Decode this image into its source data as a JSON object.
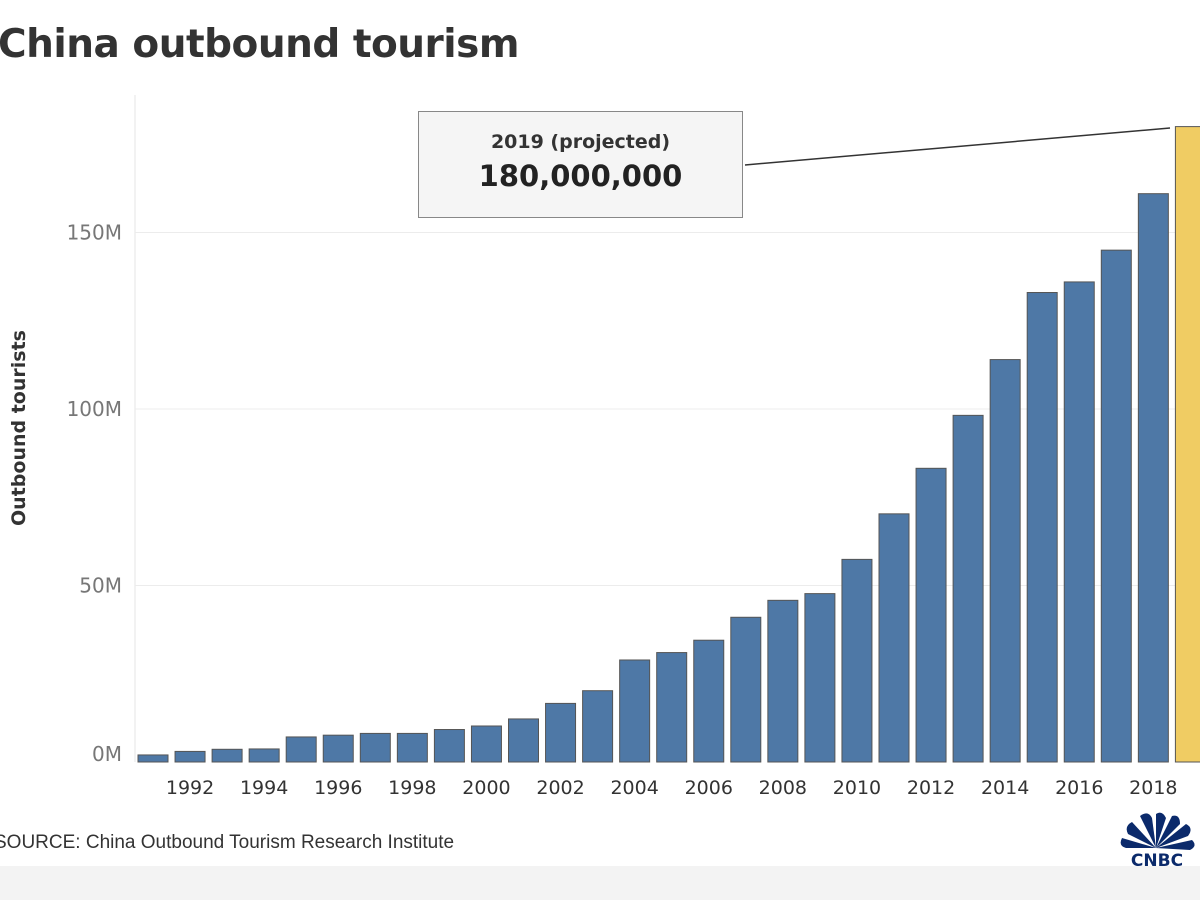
{
  "title": "China outbound tourism",
  "source": "SOURCE: China Outbound Tourism Research Institute",
  "callout": {
    "label": "2019 (projected)",
    "value": "180,000,000"
  },
  "logo_text": "CNBC",
  "colors": {
    "bar": "#4e78a6",
    "highlight": "#f0cc63",
    "grid": "#ececec"
  },
  "chart_data": {
    "type": "bar",
    "title": "China outbound tourism",
    "xlabel": "",
    "ylabel": "Outbound tourists",
    "ylim": [
      0,
      185000000
    ],
    "yticks": [
      {
        "v": 0,
        "label": "0M"
      },
      {
        "v": 50000000,
        "label": "50M"
      },
      {
        "v": 100000000,
        "label": "100M"
      },
      {
        "v": 150000000,
        "label": "150M"
      }
    ],
    "categories": [
      1991,
      1992,
      1993,
      1994,
      1995,
      1996,
      1997,
      1998,
      1999,
      2000,
      2001,
      2002,
      2003,
      2004,
      2005,
      2006,
      2007,
      2008,
      2009,
      2010,
      2011,
      2012,
      2013,
      2014,
      2015,
      2016,
      2017,
      2018,
      2019
    ],
    "xtick_labels": [
      "1992",
      "1994",
      "1996",
      "1998",
      "2000",
      "2002",
      "2004",
      "2006",
      "2008",
      "2010",
      "2012",
      "2014",
      "2016",
      "2018"
    ],
    "values": [
      2000000,
      3000000,
      3600000,
      3700000,
      7100000,
      7600000,
      8100000,
      8100000,
      9200000,
      10200000,
      12200000,
      16600000,
      20200000,
      28900000,
      31000000,
      34500000,
      41000000,
      45800000,
      47700000,
      57400000,
      70300000,
      83200000,
      98200000,
      114000000,
      133000000,
      136000000,
      145000000,
      161000000,
      180000000
    ],
    "highlight": [
      2019
    ],
    "grid": true,
    "legend": "none"
  }
}
